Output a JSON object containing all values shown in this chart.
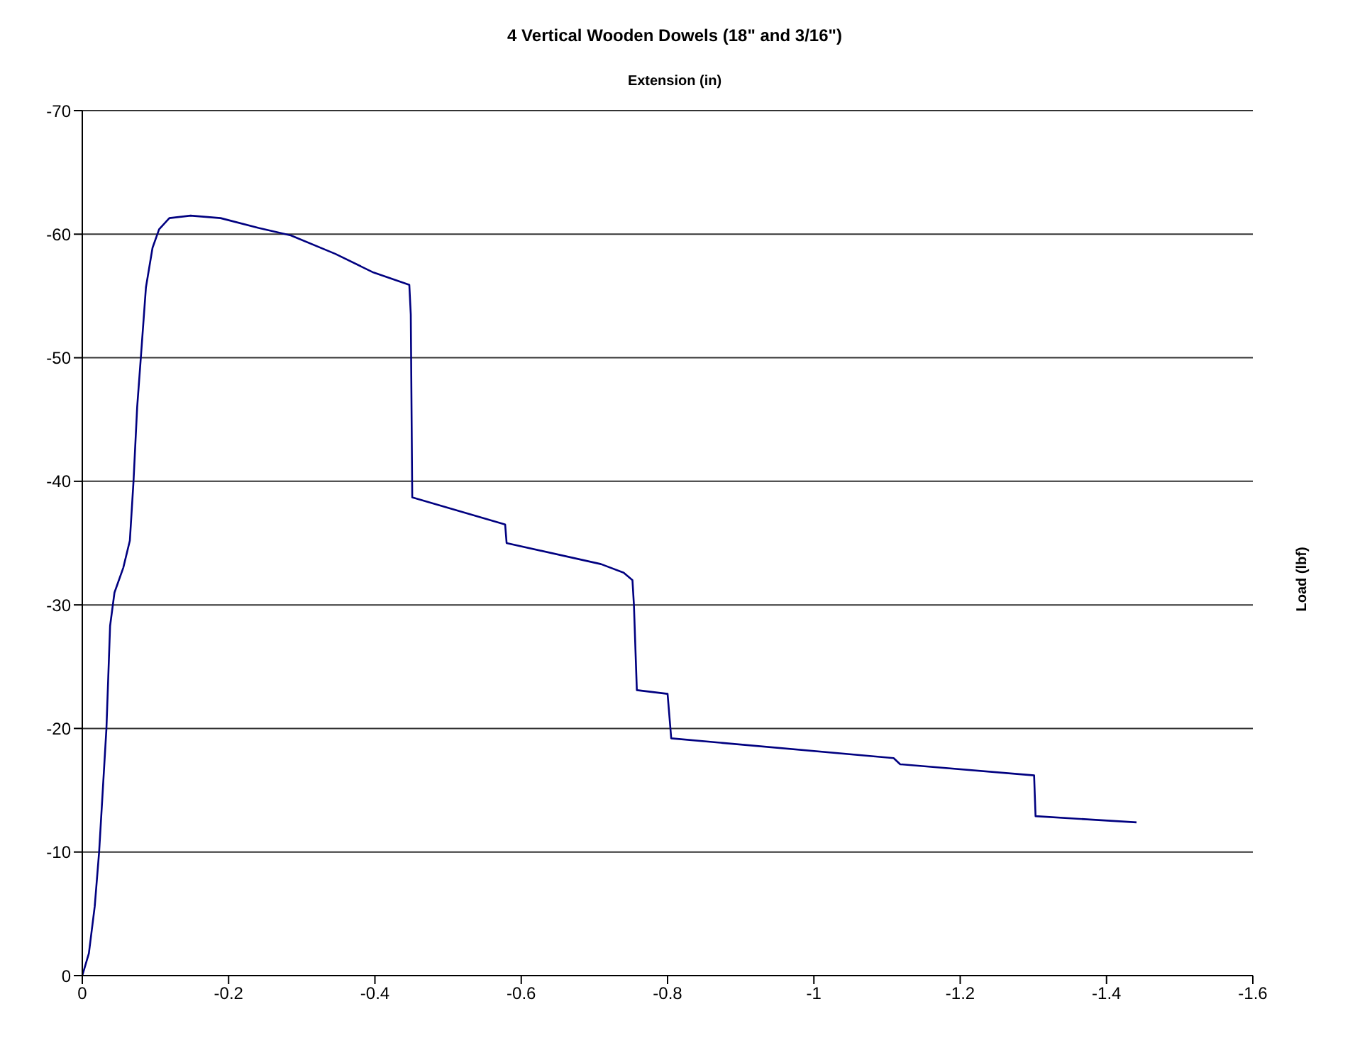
{
  "chart_data": {
    "type": "line",
    "title": "4 Vertical Wooden Dowels (18\" and 3/16\")",
    "xlabel": "Extension (in)",
    "ylabel": "Load (lbf)",
    "x": [
      0,
      -0.009,
      -0.017,
      -0.023,
      -0.028,
      -0.033,
      -0.038,
      -0.044,
      -0.056,
      -0.065,
      -0.07,
      -0.075,
      -0.08,
      -0.087,
      -0.096,
      -0.105,
      -0.119,
      -0.148,
      -0.189,
      -0.241,
      -0.285,
      -0.346,
      -0.398,
      -0.447,
      -0.449,
      -0.451,
      -0.578,
      -0.58,
      -0.709,
      -0.74,
      -0.752,
      -0.754,
      -0.758,
      -0.8,
      -0.805,
      -1.109,
      -1.118,
      -1.301,
      -1.303,
      -1.441
    ],
    "series": [
      {
        "color": "#000080",
        "values": [
          0,
          -1.8,
          -5.6,
          -10,
          -15,
          -20,
          -28.3,
          -31,
          -33,
          -35.2,
          -40,
          -46,
          -50,
          -55.7,
          -58.9,
          -60.4,
          -61.3,
          -61.5,
          -61.3,
          -60.5,
          -59.9,
          -58.4,
          -56.9,
          -55.9,
          -53.5,
          -38.7,
          -36.5,
          -35,
          -33.3,
          -32.6,
          -32,
          -30,
          -23.1,
          -22.8,
          -19.2,
          -17.6,
          -17.1,
          -16.2,
          -12.9,
          -12.4
        ]
      }
    ],
    "xlim": [
      0,
      -1.6
    ],
    "xticks": [
      0,
      -0.2,
      -0.4,
      -0.6,
      -0.8,
      -1,
      -1.2,
      -1.4,
      -1.6
    ],
    "ylim": [
      0,
      -70
    ],
    "yticks": [
      0,
      -10,
      -20,
      -30,
      -40,
      -50,
      -60,
      -70
    ],
    "grid": "y",
    "marker": "none",
    "line_style": "solid"
  }
}
